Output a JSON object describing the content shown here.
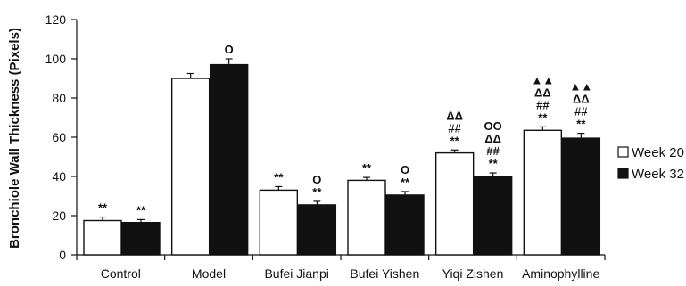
{
  "chart_data": {
    "type": "bar",
    "title": "",
    "xlabel": "",
    "ylabel": "Bronchiole Wall Thickness (Pixels)",
    "ylim": [
      0,
      120
    ],
    "yticks": [
      0,
      20,
      40,
      60,
      80,
      100,
      120
    ],
    "grid": false,
    "legend_position": "right",
    "categories": [
      "Control",
      "Model",
      "Bufei Jianpi",
      "Bufei Yishen",
      "Yiqi Zishen",
      "Aminophylline"
    ],
    "series": [
      {
        "name": "Week 20",
        "color": "#ffffff",
        "values": [
          17.5,
          90,
          33,
          38,
          52,
          63.5
        ],
        "errors": [
          1.8,
          2.5,
          1.8,
          1.5,
          1.5,
          1.8
        ],
        "annotations": [
          [
            "**"
          ],
          [],
          [
            "**"
          ],
          [
            "**"
          ],
          [
            "ΔΔ",
            "##",
            "**"
          ],
          [
            "▲▲",
            "ΔΔ",
            "##",
            "**"
          ]
        ]
      },
      {
        "name": "Week 32",
        "color": "#111111",
        "values": [
          16.5,
          97,
          25.5,
          30.5,
          40,
          59.5
        ],
        "errors": [
          1.5,
          3.0,
          1.8,
          1.8,
          1.8,
          2.5
        ],
        "annotations": [
          [
            "**"
          ],
          [
            "O"
          ],
          [
            "O",
            "**"
          ],
          [
            "O",
            "**"
          ],
          [
            "OO",
            "ΔΔ",
            "##",
            "**"
          ],
          [
            "▲▲",
            "ΔΔ",
            "##",
            "**"
          ]
        ]
      }
    ]
  }
}
